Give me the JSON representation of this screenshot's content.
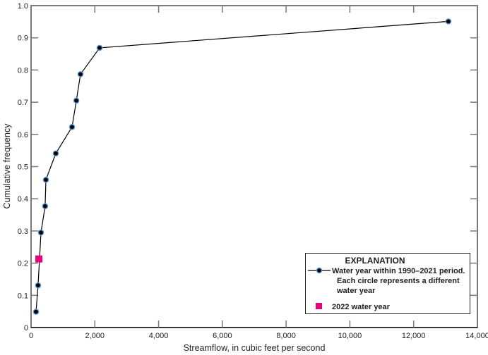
{
  "chart_data": {
    "type": "line",
    "title": "",
    "xlabel": "Streamflow, in cubic feet per second",
    "ylabel": "Cumulative  frequency",
    "xlim": [
      0,
      14000
    ],
    "ylim": [
      0,
      1.0
    ],
    "grid": false,
    "x_ticks": [
      0,
      2000,
      4000,
      6000,
      8000,
      10000,
      12000,
      14000
    ],
    "x_tick_labels": [
      "0",
      "2,000",
      "4,000",
      "6,000",
      "8,000",
      "10,000",
      "12,000",
      "14,000"
    ],
    "y_ticks": [
      0,
      0.1,
      0.2,
      0.3,
      0.4,
      0.5,
      0.6,
      0.7,
      0.8,
      0.9,
      1.0
    ],
    "y_tick_labels": [
      "0",
      "0.1",
      "0.2",
      "0.3",
      "0.4",
      "0.5",
      "0.6",
      "0.7",
      "0.8",
      "0.9",
      "1.0"
    ],
    "legend_position": "lower right",
    "series": [
      {
        "name": "Water year within 1990–2021 period. Each circle represents a different water year",
        "kind": "line+circle",
        "x": [
          155,
          220,
          310,
          440,
          465,
          775,
          1285,
          1420,
          1550,
          2150,
          13090
        ],
        "y": [
          0.049,
          0.131,
          0.295,
          0.377,
          0.459,
          0.541,
          0.623,
          0.705,
          0.787,
          0.869,
          0.951
        ]
      },
      {
        "name": "2022 water year",
        "kind": "square",
        "x": [
          245
        ],
        "y": [
          0.213
        ]
      }
    ]
  },
  "legend": {
    "title": "EXPLANATION",
    "entries": [
      {
        "lines": [
          "Water year within 1990–2021 period.",
          "Each circle represents a different",
          "water year"
        ]
      },
      {
        "lines": [
          "2022 water year"
        ]
      }
    ]
  },
  "colors": {
    "line": "#000000",
    "marker_fill": "#000000",
    "marker_ring": "#5b9bd5",
    "square": "#e6007e",
    "frame": "#7a7a7a",
    "text": "#231f20"
  }
}
